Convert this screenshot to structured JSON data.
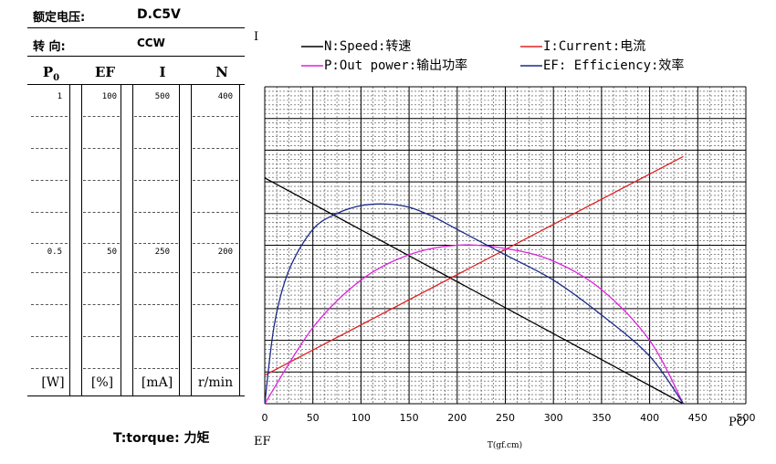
{
  "header": {
    "voltage_label": "额定电压:",
    "voltage_value": "D.C5V",
    "direction_label": "转      向:",
    "direction_value": "CCW"
  },
  "table": {
    "columns": [
      "P0",
      "EF",
      "I",
      "N"
    ],
    "row_max": [
      "1",
      "100",
      "500",
      "400"
    ],
    "row_mid": [
      "0.5",
      "50",
      "250",
      "200"
    ],
    "units": [
      "[W]",
      "[%]",
      "[mA]",
      "r/min"
    ]
  },
  "footer": {
    "torque_label": "T:torque: 力矩",
    "ef_label": "EF"
  },
  "chart_data": {
    "type": "line",
    "xlabel": "T(gf.cm)",
    "x_ticks": [
      "0",
      "50",
      "100",
      "150",
      "200",
      "250",
      "300",
      "350",
      "400",
      "450",
      "500"
    ],
    "xlim": [
      0,
      500
    ],
    "grid": true,
    "legend_position": "top",
    "corner_labels": {
      "top_left": "I",
      "bottom_right": "PO"
    },
    "legend": [
      {
        "label": "N:Speed:转速",
        "color": "#000000"
      },
      {
        "label": "I:Current:电流",
        "color": "#dd2222"
      },
      {
        "label": "P:Out power:输出功率",
        "color": "#dd22dd"
      },
      {
        "label": "EF: Efficiency:效率",
        "color": "#1a2a8a"
      }
    ],
    "series": [
      {
        "name": "N:Speed:转速",
        "axis": "N (r/min)",
        "color": "#000000",
        "x": [
          0,
          435
        ],
        "y": [
          285,
          0
        ]
      },
      {
        "name": "I:Current:电流",
        "axis": "I (mA)",
        "color": "#dd2222",
        "x": [
          0,
          435
        ],
        "y": [
          45,
          390
        ]
      },
      {
        "name": "P:Out power:输出功率",
        "axis": "P0 (W)",
        "color": "#dd22dd",
        "x": [
          0,
          50,
          100,
          150,
          200,
          250,
          300,
          350,
          400,
          435
        ],
        "y": [
          0,
          0.24,
          0.39,
          0.47,
          0.5,
          0.49,
          0.45,
          0.36,
          0.2,
          0
        ]
      },
      {
        "name": "EF: Efficiency:效率",
        "axis": "EF (%)",
        "color": "#1a2a8a",
        "x": [
          0,
          10,
          25,
          50,
          75,
          100,
          125,
          150,
          175,
          200,
          250,
          300,
          350,
          400,
          435
        ],
        "y": [
          0,
          25,
          42,
          55,
          60,
          62.5,
          63,
          62,
          59,
          55,
          47,
          39,
          28,
          15,
          0
        ]
      }
    ]
  }
}
